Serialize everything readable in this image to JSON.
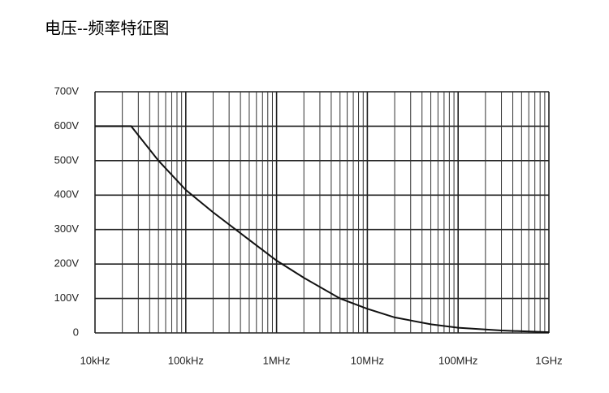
{
  "chart_data": {
    "type": "line",
    "title": "电压--频率特征图",
    "x": [
      10000,
      25000,
      50000,
      100000,
      200000,
      500000,
      1000000,
      2000000,
      5000000,
      10000000,
      20000000,
      50000000,
      100000000,
      300000000,
      1000000000
    ],
    "series": [
      {
        "color": "#111111",
        "values": [
          600,
          600,
          500,
          415,
          350,
          270,
          210,
          160,
          100,
          70,
          45,
          25,
          15,
          7,
          2
        ]
      }
    ],
    "xlim": [
      10000,
      1000000000
    ],
    "xticks": [
      {
        "value": 10000,
        "label": "10kHz"
      },
      {
        "value": 100000,
        "label": "100kHz"
      },
      {
        "value": 1000000,
        "label": "1MHz"
      },
      {
        "value": 10000000,
        "label": "10MHz"
      },
      {
        "value": 100000000,
        "label": "100MHz"
      },
      {
        "value": 1000000000,
        "label": "1GHz"
      }
    ],
    "ylim": [
      0,
      700
    ],
    "yticks": [
      0,
      {
        "value": 100,
        "label": "100V"
      },
      {
        "value": 200,
        "label": "200V"
      },
      {
        "value": 300,
        "label": "300V"
      },
      {
        "value": 400,
        "label": "400V"
      },
      {
        "value": 500,
        "label": "500V"
      },
      {
        "value": 600,
        "label": "600V"
      },
      {
        "value": 700,
        "label": "700V"
      }
    ],
    "x_log": true,
    "grid": true,
    "minor_grid": true
  }
}
